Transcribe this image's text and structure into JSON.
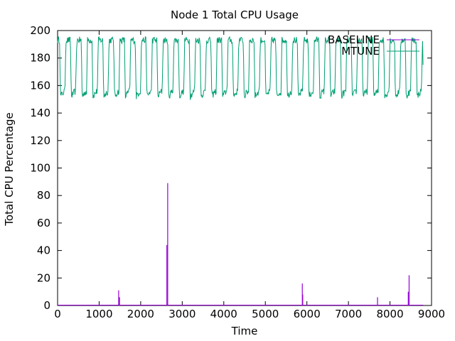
{
  "chart_data": {
    "type": "line",
    "title": "Node 1 Total CPU Usage",
    "xlabel": "Time",
    "ylabel": "Total CPU Percentage",
    "xlim": [
      0,
      9000
    ],
    "ylim": [
      0,
      200
    ],
    "xticks": [
      0,
      1000,
      2000,
      3000,
      4000,
      5000,
      6000,
      7000,
      8000,
      9000
    ],
    "yticks": [
      0,
      20,
      40,
      60,
      80,
      100,
      120,
      140,
      160,
      180,
      200
    ],
    "grid": false,
    "legend_position": "top-right",
    "series": [
      {
        "name": "BASELINE",
        "color": "#9400d3",
        "spikes": [
          {
            "x": 1470,
            "y": 11
          },
          {
            "x": 1490,
            "y": 6
          },
          {
            "x": 2630,
            "y": 44
          },
          {
            "x": 2650,
            "y": 89
          },
          {
            "x": 5890,
            "y": 16
          },
          {
            "x": 5900,
            "y": 8
          },
          {
            "x": 7700,
            "y": 6
          },
          {
            "x": 8440,
            "y": 10
          },
          {
            "x": 8460,
            "y": 22
          }
        ],
        "baseline_value": 0
      },
      {
        "name": "MTUNE",
        "color": "#009e73",
        "x_range": [
          0,
          8800
        ],
        "period": 260,
        "high": 193,
        "low": 152,
        "last_value": 175
      }
    ]
  }
}
